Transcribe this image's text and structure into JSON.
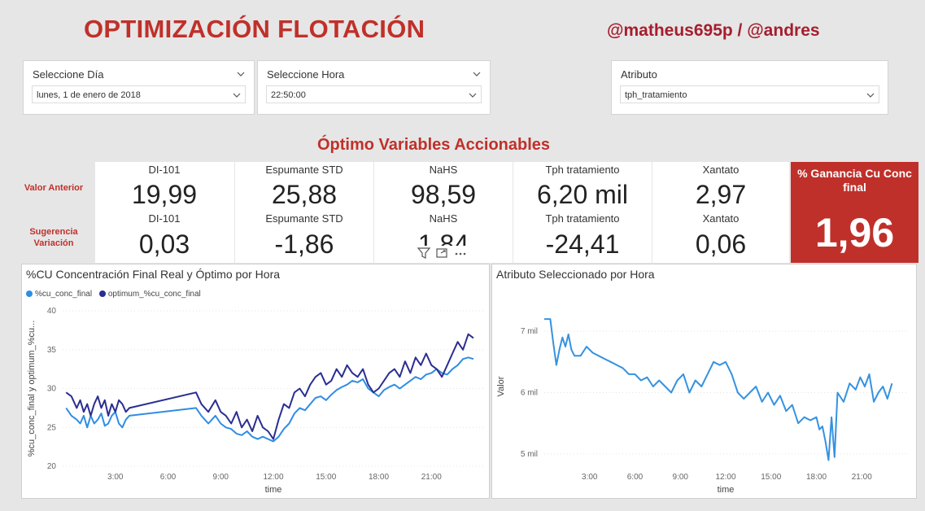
{
  "header": {
    "title": "OPTIMIZACIÓN FLOTACIÓN",
    "credits": "@matheus695p / @andres"
  },
  "filters": {
    "day": {
      "label": "Seleccione Día",
      "value": "lunes, 1 de enero de 2018"
    },
    "hour": {
      "label": "Seleccione Hora",
      "value": "22:50:00"
    },
    "attribute": {
      "label": "Atributo",
      "value": "tph_tratamiento"
    }
  },
  "kpis": {
    "section_title": "Óptimo Variables Accionables",
    "row_previous_label": "Valor Anterior",
    "row_suggestion_label": "Sugerencia Variación",
    "items": [
      {
        "name": "DI-101",
        "previous": "19,99",
        "suggestion": "0,03"
      },
      {
        "name": "Espumante STD",
        "previous": "25,88",
        "suggestion": "-1,86"
      },
      {
        "name": "NaHS",
        "previous": "98,59",
        "suggestion": "1,84"
      },
      {
        "name": "Tph tratamiento",
        "previous": "6,20 mil",
        "suggestion": "-24,41"
      },
      {
        "name": "Xantato",
        "previous": "2,97",
        "suggestion": "0,06"
      }
    ],
    "gain": {
      "label": "% Ganancia Cu Conc final",
      "value": "1,96"
    }
  },
  "colors": {
    "accent_red": "#c0302a",
    "series_light": "#2f8de4",
    "series_dark": "#2a2e91",
    "attr_line": "#3592e0"
  },
  "icons": {
    "filter": "filter-icon",
    "focus": "focus-mode-icon",
    "more": "more-options-icon"
  },
  "chart_left": {
    "title": "%CU Concentración Final Real y Óptimo por Hora",
    "legend": [
      "%cu_conc_final",
      "optimum_%cu_conc_final"
    ],
    "ylabel": "%cu_conc_final y optimum_%cu...",
    "xlabel": "time",
    "xticks": [
      "3:00",
      "6:00",
      "9:00",
      "12:00",
      "15:00",
      "18:00",
      "21:00"
    ],
    "yticks": [
      "20",
      "25",
      "30",
      "35",
      "40"
    ]
  },
  "chart_right": {
    "title": "Atributo Seleccionado por Hora",
    "ylabel": "Valor",
    "xlabel": "time",
    "xticks": [
      "3:00",
      "6:00",
      "9:00",
      "12:00",
      "15:00",
      "18:00",
      "21:00"
    ],
    "yticks": [
      "5 mil",
      "6 mil",
      "7 mil"
    ]
  },
  "chart_data": [
    {
      "type": "line",
      "title": "%CU Concentración Final Real y Óptimo por Hora",
      "xlabel": "time",
      "ylabel": "%cu_conc_final y optimum_%cu...",
      "ylim": [
        20,
        40
      ],
      "xlim": [
        0,
        24
      ],
      "x": [
        0.2,
        0.5,
        0.8,
        1.0,
        1.2,
        1.4,
        1.6,
        1.8,
        2.0,
        2.2,
        2.4,
        2.6,
        2.8,
        3.0,
        3.2,
        3.4,
        3.6,
        3.8,
        7.6,
        7.9,
        8.3,
        8.7,
        9.0,
        9.3,
        9.6,
        9.9,
        10.2,
        10.5,
        10.8,
        11.1,
        11.4,
        11.7,
        12.0,
        12.3,
        12.6,
        12.9,
        13.2,
        13.5,
        13.8,
        14.1,
        14.4,
        14.7,
        15.0,
        15.3,
        15.6,
        15.9,
        16.2,
        16.5,
        16.8,
        17.1,
        17.4,
        17.7,
        18.0,
        18.3,
        18.6,
        18.9,
        19.2,
        19.5,
        19.8,
        20.1,
        20.4,
        20.7,
        21.0,
        21.3,
        21.6,
        21.9,
        22.2,
        22.5,
        22.8,
        23.1,
        23.4
      ],
      "series": [
        {
          "name": "%cu_conc_final",
          "values": [
            27.5,
            26.5,
            26.0,
            25.5,
            26.5,
            25.0,
            26.5,
            25.5,
            26.0,
            26.8,
            25.2,
            25.5,
            26.5,
            27.0,
            25.5,
            25.0,
            26.0,
            26.5,
            27.5,
            26.5,
            25.5,
            26.5,
            25.5,
            25.0,
            24.8,
            24.2,
            24.0,
            24.5,
            23.8,
            23.5,
            23.8,
            23.5,
            23.2,
            23.8,
            24.8,
            25.5,
            26.8,
            27.5,
            27.2,
            28.0,
            28.8,
            29.0,
            28.5,
            29.2,
            29.8,
            30.2,
            30.5,
            31.0,
            30.8,
            31.2,
            30.0,
            29.5,
            29.0,
            29.8,
            30.2,
            30.5,
            30.0,
            30.5,
            31.0,
            31.5,
            31.2,
            31.8,
            32.0,
            32.5,
            32.0,
            31.8,
            32.5,
            33.0,
            33.8,
            34.0,
            33.8
          ]
        },
        {
          "name": "optimum_%cu_conc_final",
          "values": [
            29.5,
            29.0,
            27.5,
            28.5,
            27.0,
            28.0,
            26.5,
            28.0,
            29.0,
            27.5,
            28.5,
            26.5,
            28.0,
            27.0,
            28.5,
            28.0,
            27.0,
            27.5,
            29.5,
            28.0,
            27.0,
            28.5,
            27.0,
            26.5,
            25.5,
            27.0,
            25.0,
            26.0,
            24.5,
            26.5,
            25.0,
            24.5,
            23.5,
            26.0,
            28.0,
            27.5,
            29.5,
            30.0,
            29.0,
            30.5,
            31.5,
            32.0,
            30.5,
            31.0,
            32.5,
            31.5,
            33.0,
            32.0,
            31.5,
            32.5,
            30.5,
            29.5,
            30.0,
            31.0,
            32.0,
            32.5,
            31.5,
            33.5,
            32.0,
            34.0,
            33.0,
            34.5,
            33.0,
            32.5,
            31.5,
            33.0,
            34.5,
            36.0,
            35.0,
            37.0,
            36.5
          ]
        }
      ]
    },
    {
      "type": "line",
      "title": "Atributo Seleccionado por Hora",
      "xlabel": "time",
      "ylabel": "Valor",
      "ylim": [
        4.8,
        7.4
      ],
      "xlim": [
        0,
        24
      ],
      "x": [
        0.0,
        0.4,
        0.6,
        0.8,
        1.0,
        1.2,
        1.4,
        1.6,
        1.8,
        2.0,
        2.4,
        2.8,
        3.2,
        3.6,
        4.0,
        4.4,
        4.8,
        5.2,
        5.6,
        6.0,
        6.4,
        6.8,
        7.2,
        7.6,
        8.0,
        8.4,
        8.8,
        9.2,
        9.6,
        10.0,
        10.4,
        10.8,
        11.2,
        11.6,
        12.0,
        12.4,
        12.8,
        13.2,
        13.6,
        14.0,
        14.4,
        14.8,
        15.2,
        15.6,
        16.0,
        16.4,
        16.8,
        17.2,
        17.6,
        18.0,
        18.2,
        18.4,
        18.6,
        18.8,
        19.0,
        19.2,
        19.4,
        19.8,
        20.2,
        20.6,
        20.9,
        21.2,
        21.5,
        21.8,
        22.1,
        22.4,
        22.7,
        23.0
      ],
      "series": [
        {
          "name": "",
          "values": [
            7.2,
            7.2,
            6.8,
            6.45,
            6.7,
            6.9,
            6.75,
            6.95,
            6.7,
            6.6,
            6.6,
            6.75,
            6.65,
            6.6,
            6.55,
            6.5,
            6.45,
            6.4,
            6.3,
            6.3,
            6.2,
            6.25,
            6.1,
            6.2,
            6.1,
            6.0,
            6.2,
            6.3,
            6.0,
            6.2,
            6.1,
            6.3,
            6.5,
            6.45,
            6.5,
            6.3,
            6.0,
            5.9,
            6.0,
            6.1,
            5.85,
            6.0,
            5.8,
            5.95,
            5.7,
            5.8,
            5.5,
            5.6,
            5.55,
            5.6,
            5.4,
            5.45,
            5.2,
            4.9,
            5.6,
            4.95,
            6.0,
            5.85,
            6.15,
            6.05,
            6.25,
            6.1,
            6.3,
            5.85,
            6.0,
            6.1,
            5.9,
            6.15
          ]
        }
      ]
    }
  ]
}
